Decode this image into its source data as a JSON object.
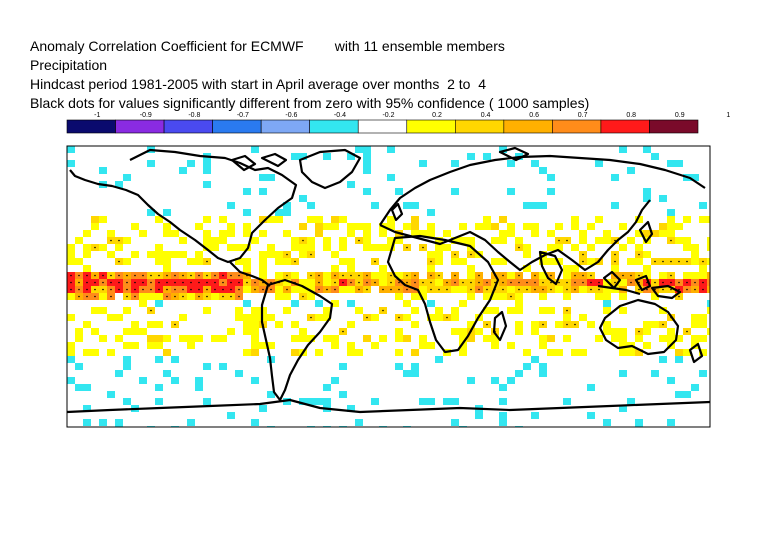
{
  "header": {
    "line1": "Anomaly Correlation Coefficient for ECMWF        with 11 ensemble members",
    "line2": "Precipitation",
    "line3": "Hindcast period 1981-2005 with start in April average over months  2 to  4",
    "line4": "Black dots for values significantly different from zero with 95% confidence ( 1000 samples)"
  },
  "colorbar": {
    "tick_labels": [
      "-1",
      "-0.9",
      "-0.8",
      "-0.7",
      "-0.6",
      "-0.4",
      "-0.2",
      "0.2",
      "0.4",
      "0.6",
      "0.7",
      "0.8",
      "0.9",
      "1"
    ],
    "colors": [
      "#0a0a6e",
      "#8a2be2",
      "#4a4af0",
      "#2a7af0",
      "#7ea8f5",
      "#33e6f0",
      "#ffffff",
      "#ffff00",
      "#ffd700",
      "#ffb000",
      "#ff8c1a",
      "#ff1a1a",
      "#7a0a2a"
    ]
  },
  "map": {
    "variable": "Precipitation",
    "projection": "global lat-lon",
    "regions_high_skill": [
      "tropical Pacific",
      "Maritime Continent",
      "tropical Atlantic"
    ],
    "significance_marker": "black dots"
  }
}
